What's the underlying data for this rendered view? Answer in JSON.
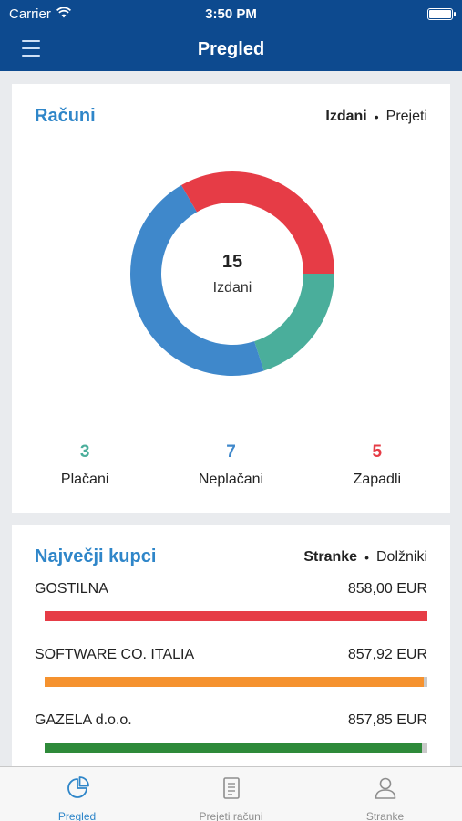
{
  "status_bar": {
    "carrier": "Carrier",
    "time": "3:50 PM",
    "battery_level": 1.0
  },
  "nav": {
    "title": "Pregled",
    "menu_icon": "hamburger-icon"
  },
  "invoices": {
    "title": "Računi",
    "toggle": {
      "active": "Izdani",
      "separator": "•",
      "inactive": "Prejeti"
    },
    "donut": {
      "count": "15",
      "label": "Izdani",
      "segments": [
        {
          "name": "Plačani",
          "value": 3,
          "color": "#4aae9b"
        },
        {
          "name": "Neplačani",
          "value": 7,
          "color": "#3f88cb"
        },
        {
          "name": "Zapadli",
          "value": 5,
          "color": "#e63c46"
        }
      ]
    },
    "stats": [
      {
        "value": "3",
        "label": "Plačani",
        "color": "#4aae9b"
      },
      {
        "value": "7",
        "label": "Neplačani",
        "color": "#3f88cb"
      },
      {
        "value": "5",
        "label": "Zapadli",
        "color": "#e63c46"
      }
    ]
  },
  "customers": {
    "title": "Največji kupci",
    "toggle": {
      "active": "Stranke",
      "separator": "•",
      "inactive": "Dolžniki"
    },
    "items": [
      {
        "name": "GOSTILNA",
        "amount": "858,00 EUR",
        "fraction": 1.0,
        "color": "#e63c46"
      },
      {
        "name": "SOFTWARE CO. ITALIA",
        "amount": "857,92 EUR",
        "fraction": 0.99,
        "color": "#f5922f"
      },
      {
        "name": "GAZELA d.o.o.",
        "amount": "857,85 EUR",
        "fraction": 0.985,
        "color": "#2e8a3a"
      }
    ]
  },
  "tabs": [
    {
      "label": "Pregled",
      "icon": "pie-chart-icon",
      "active": true
    },
    {
      "label": "Prejeti računi",
      "icon": "document-icon",
      "active": false
    },
    {
      "label": "Stranke",
      "icon": "person-icon",
      "active": false
    }
  ],
  "colors": {
    "header": "#0d4a8f",
    "accent": "#2f86c9",
    "background": "#e9ebee"
  }
}
